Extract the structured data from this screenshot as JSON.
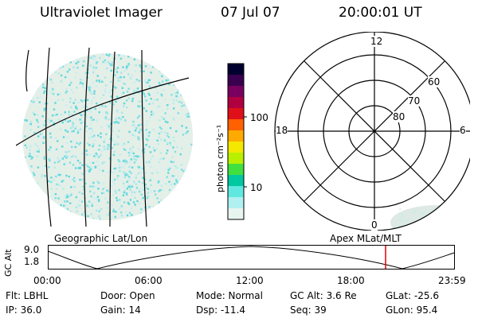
{
  "header": {
    "title": "Ultraviolet Imager",
    "date": "07 Jul 07",
    "time": "20:00:01 UT"
  },
  "colorbar": {
    "label": "photon cm⁻²s⁻¹",
    "ticks": [
      "100",
      "10"
    ],
    "colors": [
      "#000030",
      "#3a0050",
      "#7a0060",
      "#b00040",
      "#e0101a",
      "#ff6000",
      "#ffaa00",
      "#f4e800",
      "#b8f000",
      "#40e040",
      "#00c8a0",
      "#60e8e0",
      "#b0f0f0",
      "#e8f4f0"
    ]
  },
  "polar_plot": {
    "labels": {
      "top": "12",
      "left": "18",
      "right": "6",
      "bottom": "0",
      "r60": "60",
      "r70": "70",
      "r80": "80"
    }
  },
  "labels": {
    "left_panel": "Geographic Lat/Lon",
    "right_panel": "Apex MLat/MLT"
  },
  "altitude_plot": {
    "axis_label": "GC Alt",
    "y_ticks": [
      "9.0",
      "1.8"
    ],
    "x_ticks": [
      "00:00",
      "06:00",
      "12:00",
      "18:00",
      "23:59"
    ],
    "marker_color": "#e00000"
  },
  "info": {
    "row1": [
      "Flt: LBHL",
      "Door: Open",
      "Mode: Normal",
      "GC Alt: 3.6 Re",
      "GLat: -25.6"
    ],
    "row2": [
      "IP: 36.0",
      "Gain: 14",
      "Dsp:  -11.4",
      "Seq: 39",
      "GLon:  95.4"
    ]
  }
}
